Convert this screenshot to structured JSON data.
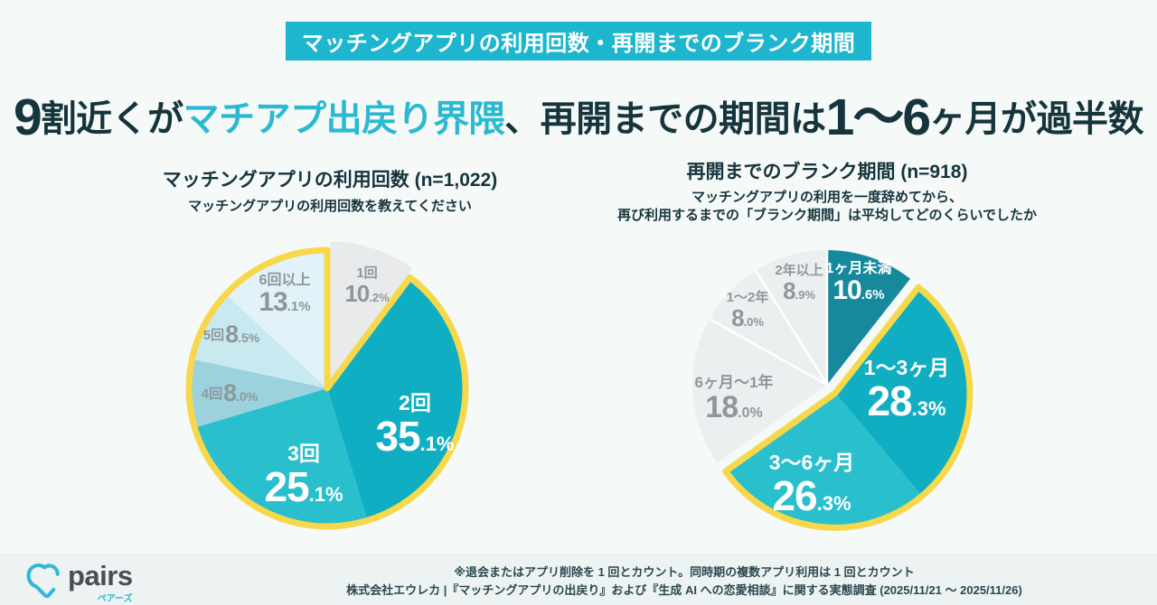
{
  "colors": {
    "accent_cyan": "#1EB6CE",
    "headline_accent": "#2BB9D2",
    "dark_text": "#16343C",
    "highlight_yellow": "#F7D84B",
    "gray_label": "#8D979B",
    "background": "#F5FAF9"
  },
  "banner": {
    "label": "マッチングアプリの利用回数・再開までのブランク期間"
  },
  "headline": {
    "num1": "9",
    "text1": "割近くが",
    "accent": "マチアプ出戻り界隈",
    "text2": "、再開までの期間は",
    "num2": "1〜6",
    "text3": "ヶ月が過半数"
  },
  "chart_data": [
    {
      "type": "pie",
      "title": "マッチングアプリの利用回数 (n=1,022)",
      "question": "マッチングアプリの利用回数を教えてください",
      "start_angle": "12時方向から時計回り",
      "slices": [
        {
          "label": "1回",
          "value": 10.2,
          "color": "#E8EAEB",
          "text_color": "gray",
          "group": "single"
        },
        {
          "label": "2回",
          "value": 35.1,
          "color": "#10AEC2",
          "text_color": "white",
          "group": "returners"
        },
        {
          "label": "3回",
          "value": 25.1,
          "color": "#2ABFCD",
          "text_color": "white",
          "group": "returners"
        },
        {
          "label": "4回",
          "value": 8.0,
          "color": "#9BD2DE",
          "text_color": "gray",
          "group": "returners"
        },
        {
          "label": "5回",
          "value": 8.5,
          "color": "#C9E9F1",
          "text_color": "gray",
          "group": "returners"
        },
        {
          "label": "6回以上",
          "value": 13.1,
          "color": "#E1F3F8",
          "text_color": "gray",
          "group": "returners"
        }
      ],
      "groups": {
        "single": {
          "offset": 10,
          "outline": false,
          "separators": false
        },
        "returners": {
          "offset": 0,
          "outline": true,
          "separators": false
        }
      }
    },
    {
      "type": "pie",
      "title": "再開までのブランク期間 (n=918)",
      "question_line1": "マッチングアプリの利用を一度辞めてから、",
      "question_line2": "再び利用するまでの「ブランク期間」は平均してどのくらいでしたか",
      "start_angle": "12時方向から時計回り",
      "slices": [
        {
          "label": "1ヶ月未満",
          "value": 10.6,
          "color": "#17899D",
          "text_color": "white",
          "group": "rest"
        },
        {
          "label": "1〜3ヶ月",
          "value": 28.3,
          "color": "#10AEC2",
          "text_color": "white",
          "group": "highlight"
        },
        {
          "label": "3〜6ヶ月",
          "value": 26.3,
          "color": "#2ABFCD",
          "text_color": "white",
          "group": "highlight"
        },
        {
          "label": "6ヶ月〜1年",
          "value": 18.0,
          "color": "#ECEFF0",
          "text_color": "gray",
          "group": "rest"
        },
        {
          "label": "1〜2年",
          "value": 8.0,
          "color": "#ECEFF0",
          "text_color": "gray",
          "group": "rest"
        },
        {
          "label": "2年以上",
          "value": 8.9,
          "color": "#ECEFF0",
          "text_color": "gray",
          "group": "rest"
        }
      ],
      "groups": {
        "highlight": {
          "offset": 13,
          "outline": true,
          "separators": false
        },
        "rest": {
          "offset": 0,
          "outline": false,
          "separators": true
        }
      }
    }
  ],
  "footer": {
    "note1": "※退会またはアプリ削除を 1 回とカウント。同時期の複数アプリ利用は 1 回とカウント",
    "note2": "株式会社エウレカ |『マッチングアプリの出戻り』および『生成 AI への恋愛相談』に関する実態調査 (2025/11/21 〜 2025/11/26)",
    "logo_text": "pairs",
    "logo_kana": "ペアーズ"
  }
}
